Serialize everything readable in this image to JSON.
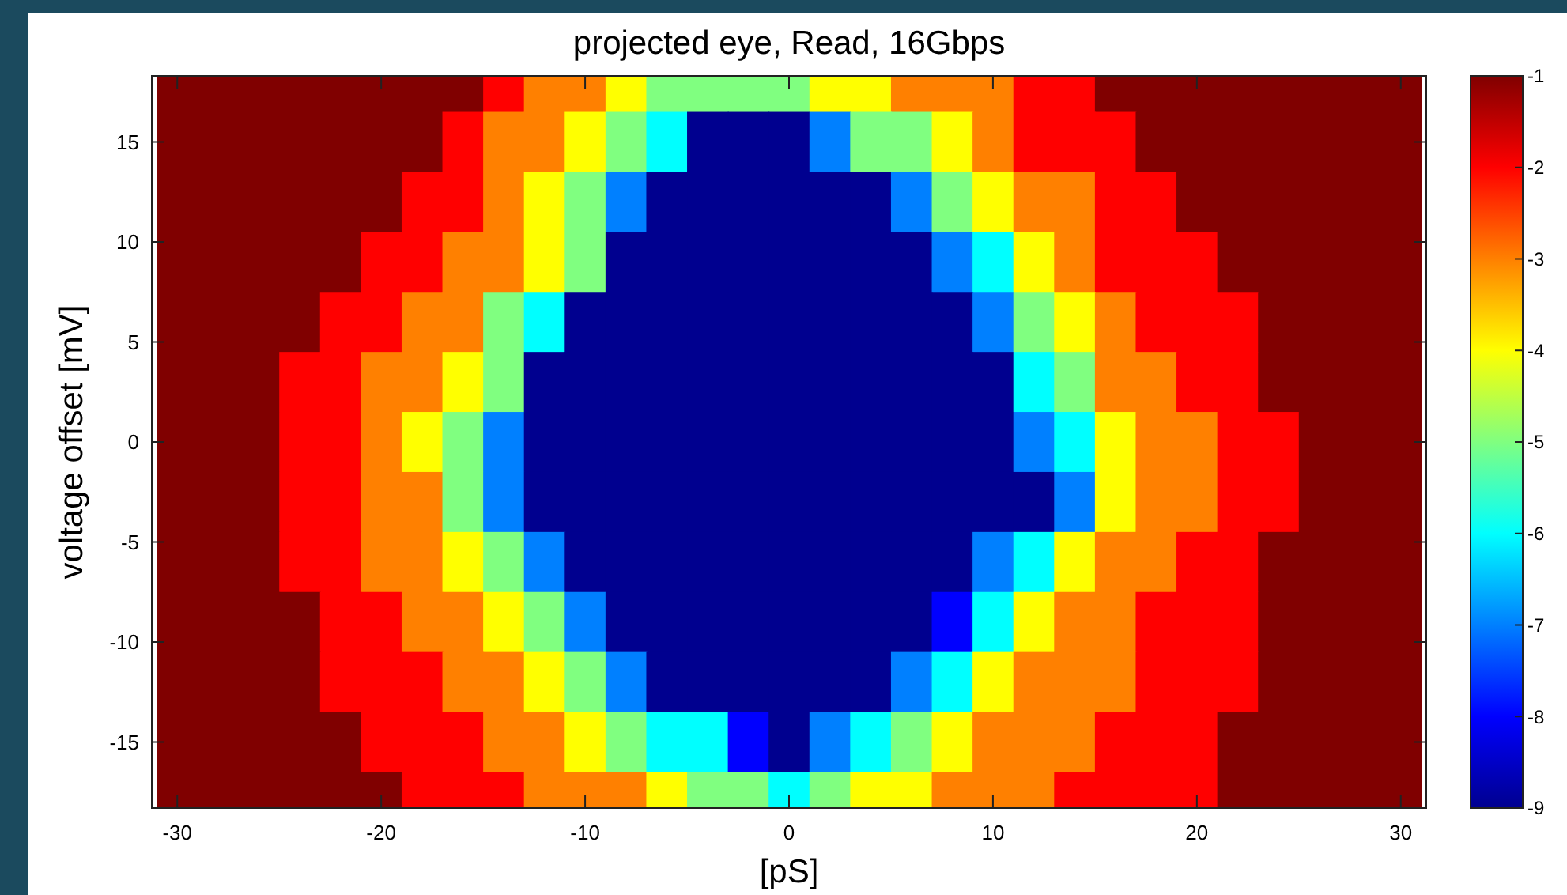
{
  "chart_data": {
    "type": "heatmap",
    "title": "projected eye, Read, 16Gbps",
    "xlabel": "[pS]",
    "ylabel": "voltage offset [mV]",
    "x": [
      -30,
      -28,
      -26,
      -24,
      -22,
      -20,
      -18,
      -16,
      -14,
      -12,
      -10,
      -8,
      -6,
      -4,
      -2,
      0,
      2,
      4,
      6,
      8,
      10,
      12,
      14,
      16,
      18,
      20,
      22,
      24,
      26,
      28,
      30
    ],
    "y": [
      18,
      15,
      12,
      9,
      6,
      3,
      0,
      -3,
      -6,
      -9,
      -12,
      -15,
      -18
    ],
    "cells": [
      [
        -1,
        -1,
        -1,
        -1,
        -1,
        -1,
        -1,
        -1,
        -2,
        -3,
        -3,
        -4,
        -5,
        -5,
        -5,
        -5,
        -4,
        -4,
        -3,
        -3,
        -3,
        -2,
        -2,
        -1,
        -1,
        -1,
        -1,
        -1,
        -1,
        -1,
        -1
      ],
      [
        -1,
        -1,
        -1,
        -1,
        -1,
        -1,
        -1,
        -2,
        -3,
        -3,
        -4,
        -5,
        -6,
        -9,
        -9,
        -9,
        -7,
        -5,
        -5,
        -4,
        -3,
        -2,
        -2,
        -2,
        -1,
        -1,
        -1,
        -1,
        -1,
        -1,
        -1
      ],
      [
        -1,
        -1,
        -1,
        -1,
        -1,
        -1,
        -2,
        -2,
        -3,
        -4,
        -5,
        -7,
        -9,
        -9,
        -9,
        -9,
        -9,
        -9,
        -7,
        -5,
        -4,
        -3,
        -3,
        -2,
        -2,
        -1,
        -1,
        -1,
        -1,
        -1,
        -1
      ],
      [
        -1,
        -1,
        -1,
        -1,
        -1,
        -2,
        -2,
        -3,
        -3,
        -4,
        -5,
        -9,
        -9,
        -9,
        -9,
        -9,
        -9,
        -9,
        -9,
        -7,
        -6,
        -4,
        -3,
        -2,
        -2,
        -2,
        -1,
        -1,
        -1,
        -1,
        -1
      ],
      [
        -1,
        -1,
        -1,
        -1,
        -2,
        -2,
        -3,
        -3,
        -5,
        -6,
        -9,
        -9,
        -9,
        -9,
        -9,
        -9,
        -9,
        -9,
        -9,
        -9,
        -7,
        -5,
        -4,
        -3,
        -2,
        -2,
        -2,
        -1,
        -1,
        -1,
        -1
      ],
      [
        -1,
        -1,
        -1,
        -2,
        -2,
        -3,
        -3,
        -4,
        -5,
        -9,
        -9,
        -9,
        -9,
        -9,
        -9,
        -9,
        -9,
        -9,
        -9,
        -9,
        -9,
        -6,
        -5,
        -3,
        -3,
        -2,
        -2,
        -1,
        -1,
        -1,
        -1
      ],
      [
        -1,
        -1,
        -1,
        -2,
        -2,
        -3,
        -4,
        -5,
        -7,
        -9,
        -9,
        -9,
        -9,
        -9,
        -9,
        -9,
        -9,
        -9,
        -9,
        -9,
        -9,
        -7,
        -6,
        -4,
        -3,
        -3,
        -2,
        -2,
        -1,
        -1,
        -1
      ],
      [
        -1,
        -1,
        -1,
        -2,
        -2,
        -3,
        -3,
        -5,
        -7,
        -9,
        -9,
        -9,
        -9,
        -9,
        -9,
        -9,
        -9,
        -9,
        -9,
        -9,
        -9,
        -9,
        -7,
        -4,
        -3,
        -3,
        -2,
        -2,
        -1,
        -1,
        -1
      ],
      [
        -1,
        -1,
        -1,
        -2,
        -2,
        -3,
        -3,
        -4,
        -5,
        -7,
        -9,
        -9,
        -9,
        -9,
        -9,
        -9,
        -9,
        -9,
        -9,
        -9,
        -7,
        -6,
        -4,
        -3,
        -3,
        -2,
        -2,
        -1,
        -1,
        -1,
        -1
      ],
      [
        -1,
        -1,
        -1,
        -1,
        -2,
        -2,
        -3,
        -3,
        -4,
        -5,
        -7,
        -9,
        -9,
        -9,
        -9,
        -9,
        -9,
        -9,
        -9,
        -8,
        -6,
        -4,
        -3,
        -3,
        -2,
        -2,
        -2,
        -1,
        -1,
        -1,
        -1
      ],
      [
        -1,
        -1,
        -1,
        -1,
        -2,
        -2,
        -2,
        -3,
        -3,
        -4,
        -5,
        -7,
        -9,
        -9,
        -9,
        -9,
        -9,
        -9,
        -7,
        -6,
        -4,
        -3,
        -3,
        -3,
        -2,
        -2,
        -2,
        -1,
        -1,
        -1,
        -1
      ],
      [
        -1,
        -1,
        -1,
        -1,
        -1,
        -2,
        -2,
        -2,
        -3,
        -3,
        -4,
        -5,
        -6,
        -6,
        -8,
        -9,
        -7,
        -6,
        -5,
        -4,
        -3,
        -3,
        -3,
        -2,
        -2,
        -2,
        -1,
        -1,
        -1,
        -1,
        -1
      ],
      [
        -1,
        -1,
        -1,
        -1,
        -1,
        -1,
        -2,
        -2,
        -2,
        -3,
        -3,
        -3,
        -4,
        -5,
        -5,
        -6,
        -5,
        -4,
        -4,
        -3,
        -3,
        -3,
        -2,
        -2,
        -2,
        -2,
        -1,
        -1,
        -1,
        -1,
        -1
      ]
    ],
    "xlim": [
      -31.25,
      31.25
    ],
    "ylim": [
      -18.3,
      18.3
    ],
    "xticks": [
      -30,
      -20,
      -10,
      0,
      10,
      20,
      30
    ],
    "yticks": [
      -15,
      -10,
      -5,
      0,
      5,
      10,
      15
    ],
    "clim": [
      -9,
      -1
    ],
    "cticks": [
      -9,
      -8,
      -7,
      -6,
      -5,
      -4,
      -3,
      -2,
      -1
    ]
  }
}
